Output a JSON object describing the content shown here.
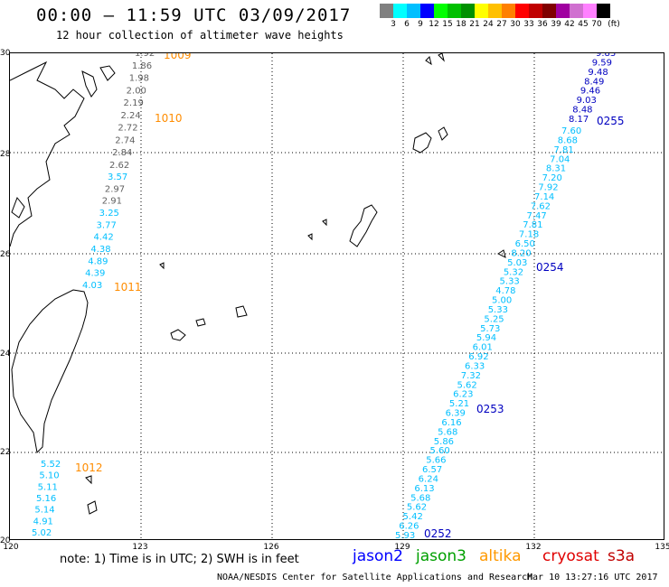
{
  "header": {
    "title": "00:00 – 11:59 UTC 03/09/2017",
    "subtitle": "12 hour collection of altimeter wave heights"
  },
  "colorbar": {
    "colors": [
      "#808080",
      "#00ffff",
      "#00bfff",
      "#0000ff",
      "#00ff00",
      "#00c000",
      "#009000",
      "#ffff00",
      "#ffc000",
      "#ff8000",
      "#ff0000",
      "#c00000",
      "#800000",
      "#a000a0",
      "#d070d0",
      "#ff80ff",
      "#000000"
    ],
    "labels": [
      "3",
      "6",
      "9",
      "12",
      "15",
      "18",
      "21",
      "24",
      "27",
      "30",
      "33",
      "36",
      "39",
      "42",
      "45",
      "70",
      "(ft)"
    ]
  },
  "axes": {
    "lat_labels": [
      "30",
      "28",
      "26",
      "24",
      "22",
      "20"
    ],
    "lon_labels": [
      "120",
      "123",
      "126",
      "129",
      "132",
      "135"
    ]
  },
  "pressure_labels": [
    {
      "text": "1009",
      "color": "#ff8c00"
    },
    {
      "text": "1010",
      "color": "#ff8c00"
    },
    {
      "text": "1011",
      "color": "#ff8c00"
    },
    {
      "text": "1012",
      "color": "#ff8c00"
    }
  ],
  "time_labels": [
    {
      "text": "0255",
      "color": "#0000c0"
    },
    {
      "text": "0254",
      "color": "#0000c0"
    },
    {
      "text": "0253",
      "color": "#0000c0"
    },
    {
      "text": "0252",
      "color": "#0000c0"
    }
  ],
  "track_west_gray": [
    "1.92",
    "1.86",
    "1.98",
    "2.00",
    "2.19",
    "2.24",
    "2.72",
    "2.74",
    "2.84",
    "2.62"
  ],
  "track_west_mixed": [
    {
      "v": "3.57",
      "c": "#00bfff"
    },
    {
      "v": "2.97",
      "c": "#606060"
    },
    {
      "v": "2.91",
      "c": "#606060"
    },
    {
      "v": "3.25",
      "c": "#00bfff"
    },
    {
      "v": "3.77",
      "c": "#00bfff"
    },
    {
      "v": "4.42",
      "c": "#00bfff"
    },
    {
      "v": "4.38",
      "c": "#00bfff"
    },
    {
      "v": "4.89",
      "c": "#00bfff"
    },
    {
      "v": "4.39",
      "c": "#00bfff"
    },
    {
      "v": "4.03",
      "c": "#00bfff"
    }
  ],
  "track_south": [
    "5.52",
    "5.10",
    "5.11",
    "5.16",
    "5.14",
    "4.91",
    "5.02"
  ],
  "track_east_blue": [
    "9.83",
    "9.59",
    "9.48",
    "8.49",
    "9.46",
    "9.03",
    "8.48",
    "8.17"
  ],
  "track_east_cyan": [
    "7.60",
    "8.68",
    "7.81",
    "7.04",
    "8.31",
    "7.20",
    "7.92",
    "7.14",
    "7.62",
    "7.47",
    "7.81",
    "7.18",
    "6.50",
    "8.20",
    "5.03",
    "5.32",
    "5.33",
    "4.78",
    "5.00",
    "5.33",
    "5.25",
    "5.73",
    "5.94",
    "6.01",
    "6.92",
    "6.33",
    "7.32",
    "5.62",
    "6.23",
    "5.21",
    "6.39",
    "6.16",
    "5.68",
    "5.86",
    "5.60",
    "5.66",
    "6.57",
    "6.24",
    "6.13",
    "5.68",
    "5.62",
    "5.42",
    "6.26",
    "5.93"
  ],
  "note": "note: 1) Time is in UTC; 2) SWH is in feet",
  "satellites": [
    {
      "name": "jason2",
      "color": "#0000ff"
    },
    {
      "name": "jason3",
      "color": "#00a000"
    },
    {
      "name": "altika",
      "color": "#ff9900"
    },
    {
      "name": "cryosat",
      "color": "#e00000"
    },
    {
      "name": "s3a",
      "color": "#c00000"
    }
  ],
  "credit": "NOAA/NESDIS Center for Satellite Applications and Research",
  "timestamp": "Mar 10 13:27:16 UTC 2017"
}
